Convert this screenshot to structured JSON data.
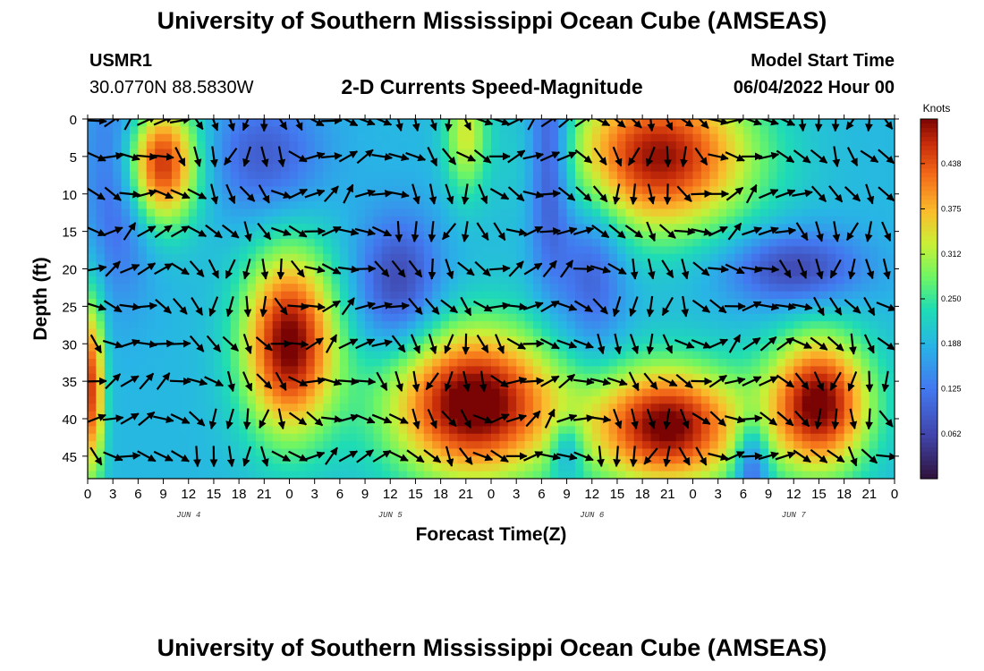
{
  "header": {
    "title": "University of Southern Mississippi Ocean Cube (AMSEAS)",
    "station_id": "USMR1",
    "coords": "30.0770N  88.5830W",
    "subtitle": "2-D Currents Speed-Magnitude",
    "model_start_label": "Model Start Time",
    "model_start_value": "06/04/2022 Hour 00"
  },
  "footer": {
    "title": "University of Southern Mississippi Ocean Cube (AMSEAS)"
  },
  "chart_data": {
    "type": "heatmap",
    "title": "2-D Currents Speed-Magnitude",
    "xlabel": "Forecast Time(Z)",
    "ylabel": "Depth (ft)",
    "x_tick_labels": [
      "0",
      "3",
      "6",
      "9",
      "12",
      "15",
      "18",
      "21",
      "0",
      "3",
      "6",
      "9",
      "12",
      "15",
      "18",
      "21",
      "0",
      "3",
      "6",
      "9",
      "12",
      "15",
      "18",
      "21",
      "0",
      "3",
      "6",
      "9",
      "12",
      "15",
      "18",
      "21",
      "0"
    ],
    "x_range_hours": [
      0,
      96
    ],
    "day_labels": [
      {
        "label": "JUN 4",
        "hour": 12
      },
      {
        "label": "JUN 5",
        "hour": 36
      },
      {
        "label": "JUN 6",
        "hour": 60
      },
      {
        "label": "JUN 7",
        "hour": 84
      }
    ],
    "y_ticks": [
      0,
      5,
      10,
      15,
      20,
      25,
      30,
      35,
      40,
      45
    ],
    "y_tick_labels": [
      "0",
      "5",
      "10",
      "15",
      "20",
      "25",
      "30",
      "35",
      "40",
      "45"
    ],
    "y_range_ft": [
      0,
      48
    ],
    "y_inverted": true,
    "colorbar": {
      "label": "Knots",
      "range": [
        0,
        0.5
      ],
      "ticks": [
        0.062,
        0.125,
        0.188,
        0.25,
        0.312,
        0.375,
        0.438
      ],
      "tick_labels": [
        "0.062",
        "0.125",
        "0.188",
        "0.250",
        "0.312",
        "0.375",
        "0.438"
      ],
      "colormap": "turbo"
    },
    "speed_field": {
      "base_knots": 0.19,
      "hotspots_knots": [
        {
          "t": 0.5,
          "d": 36,
          "st": 1.5,
          "sd": 12,
          "a": 0.26
        },
        {
          "t": 8.5,
          "d": 6,
          "st": 4.5,
          "sd": 8,
          "a": 0.3
        },
        {
          "t": 24,
          "d": 30,
          "st": 5.5,
          "sd": 12,
          "a": 0.32
        },
        {
          "t": 45,
          "d": 2,
          "st": 2.5,
          "sd": 8,
          "a": 0.14
        },
        {
          "t": 46,
          "d": 38,
          "st": 10,
          "sd": 10,
          "a": 0.34
        },
        {
          "t": 69,
          "d": 41,
          "st": 9,
          "sd": 8,
          "a": 0.32
        },
        {
          "t": 68,
          "d": 5,
          "st": 11,
          "sd": 10,
          "a": 0.3
        },
        {
          "t": 87,
          "d": 38,
          "st": 6,
          "sd": 9,
          "a": 0.32
        },
        {
          "t": 4,
          "d": 8,
          "st": 4,
          "sd": 14,
          "a": -0.12
        },
        {
          "t": 21,
          "d": 5,
          "st": 7,
          "sd": 8,
          "a": -0.1
        },
        {
          "t": 37,
          "d": 22,
          "st": 5,
          "sd": 9,
          "a": -0.13
        },
        {
          "t": 55,
          "d": 5,
          "st": 2.5,
          "sd": 15,
          "a": -0.15
        },
        {
          "t": 60,
          "d": 20,
          "st": 4,
          "sd": 12,
          "a": -0.1
        },
        {
          "t": 84,
          "d": 20,
          "st": 8,
          "sd": 5,
          "a": -0.13
        },
        {
          "t": 79,
          "d": 46,
          "st": 2,
          "sd": 6,
          "a": -0.14
        },
        {
          "t": 57,
          "d": 44,
          "st": 2,
          "sd": 4,
          "a": -0.1
        }
      ]
    },
    "vector_grid": {
      "x_hours_start": 1,
      "x_hours_step": 2,
      "count_x": 48,
      "y_ft_start": 0,
      "y_ft_step": 5,
      "count_y": 10,
      "direction_note": "unit current direction per grid cell, estimated"
    },
    "notes": "Colored field shows current speed in knots; arrows show current direction at each depth/time."
  }
}
